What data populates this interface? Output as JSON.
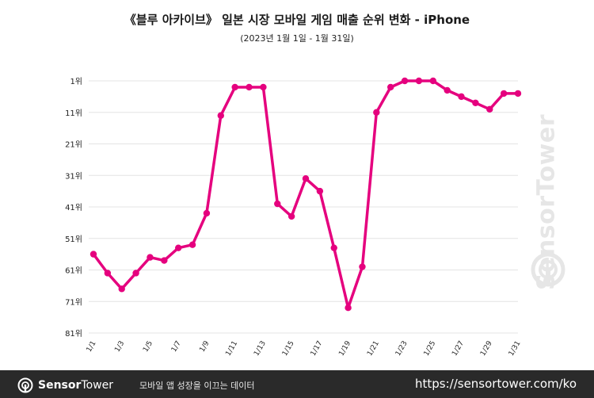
{
  "title": "《블루 아카이브》 일본 시장 모바일 게임 매출 순위 변화 - iPhone",
  "subtitle": "(2023년 1월 1일 - 1월 31일)",
  "watermark": "SensorTower",
  "footer": {
    "brand_bold": "Sensor",
    "brand_regular": "Tower",
    "tagline": "모바일 앱 성장을 이끄는 데이터",
    "url": "https://sensortower.com/ko"
  },
  "colors": {
    "line": "#e5007e",
    "grid": "#e4e4e4",
    "footer_bg": "#2a2a2a"
  },
  "chart_data": {
    "type": "line",
    "title": "《블루 아카이브》 일본 시장 모바일 게임 매출 순위 변화 - iPhone",
    "subtitle": "(2023년 1월 1일 - 1월 31일)",
    "y_inverted": true,
    "ylim": [
      1,
      81
    ],
    "yticks": [
      1,
      11,
      21,
      31,
      41,
      51,
      61,
      71,
      81
    ],
    "ytick_labels": [
      "1위",
      "11위",
      "21위",
      "31위",
      "41위",
      "51위",
      "61위",
      "71위",
      "81위"
    ],
    "x": [
      "1/1",
      "1/2",
      "1/3",
      "1/4",
      "1/5",
      "1/6",
      "1/7",
      "1/8",
      "1/9",
      "1/10",
      "1/11",
      "1/12",
      "1/13",
      "1/14",
      "1/15",
      "1/16",
      "1/17",
      "1/18",
      "1/19",
      "1/20",
      "1/21",
      "1/22",
      "1/23",
      "1/24",
      "1/25",
      "1/26",
      "1/27",
      "1/28",
      "1/29",
      "1/30",
      "1/31"
    ],
    "xtick_labels": [
      "1/1",
      "1/3",
      "1/5",
      "1/7",
      "1/9",
      "1/11",
      "1/13",
      "1/15",
      "1/17",
      "1/19",
      "1/21",
      "1/23",
      "1/25",
      "1/27",
      "1/29",
      "1/31"
    ],
    "series": [
      {
        "values": [
          56,
          62,
          67,
          62,
          57,
          58,
          54,
          53,
          43,
          12,
          3,
          3,
          3,
          40,
          44,
          32,
          36,
          54,
          73,
          60,
          11,
          3,
          1,
          1,
          1,
          4,
          6,
          8,
          10,
          5,
          5
        ]
      }
    ],
    "grid": true,
    "legend": "none"
  }
}
